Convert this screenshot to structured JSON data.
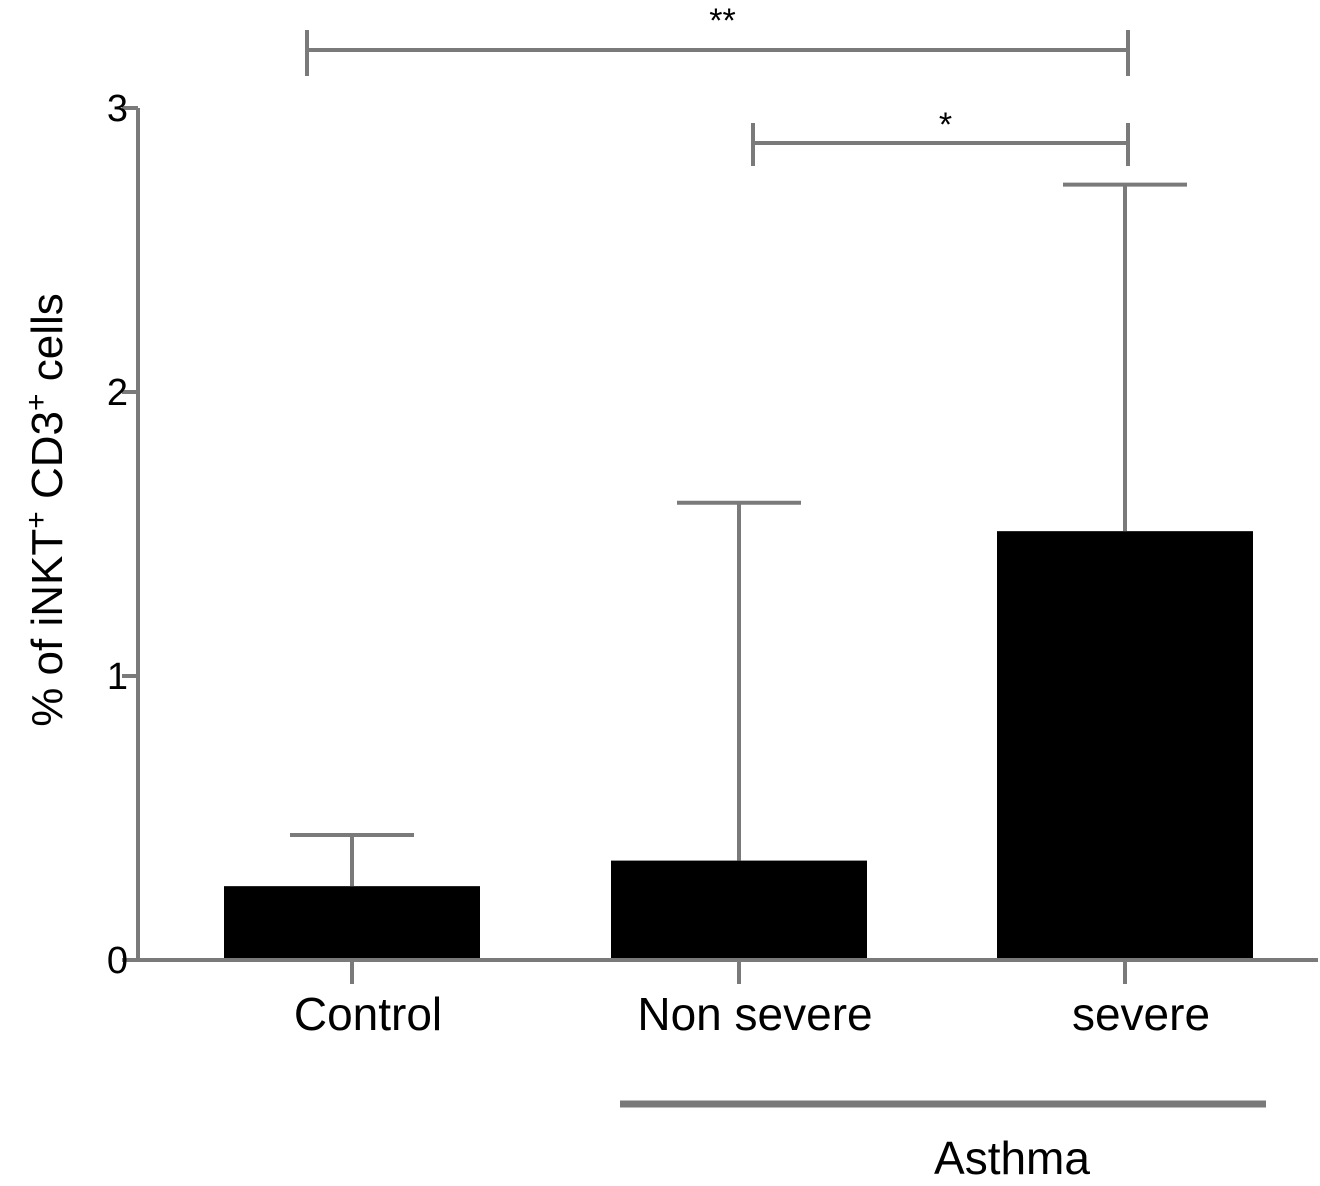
{
  "chart_data": {
    "type": "bar",
    "categories": [
      "Control",
      "Non severe",
      "severe"
    ],
    "values": [
      0.26,
      0.35,
      1.51
    ],
    "error_upper": [
      0.44,
      1.61,
      2.73
    ],
    "ylabel_parts": [
      "% of iNKT",
      "+",
      " CD3",
      "+",
      " cells"
    ],
    "ylim": [
      0,
      3
    ],
    "yticks": [
      "0",
      "1",
      "2",
      "3"
    ],
    "grid": false,
    "bar_color": "#000000",
    "line_color": "#7a7a7a",
    "group_label": {
      "text": "Asthma",
      "categories": [
        "Non severe",
        "severe"
      ]
    },
    "significance": [
      {
        "from": "Control",
        "to": "severe",
        "label": "**"
      },
      {
        "from": "Non severe",
        "to": "severe",
        "label": "*"
      }
    ]
  }
}
